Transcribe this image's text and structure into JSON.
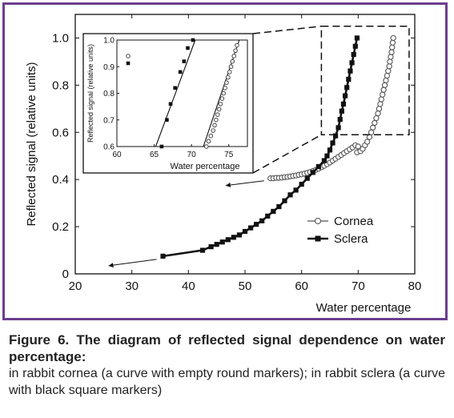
{
  "chart_data": {
    "main": {
      "type": "scatter",
      "xlabel": "Water percentage",
      "ylabel": "Reflected signal (relative units)",
      "xlim": [
        20,
        80
      ],
      "ylim": [
        0,
        1.1
      ],
      "xticks": [
        20,
        30,
        40,
        50,
        60,
        70,
        80
      ],
      "yticks": [
        0,
        0.2,
        0.4,
        0.6,
        0.8,
        1.0
      ],
      "ytick_labels": [
        "0",
        "0.2",
        "0.4",
        "0.6",
        "0.8",
        "1.0"
      ],
      "legend": {
        "placement": "center-right",
        "entries": [
          "Cornea",
          "Sclera"
        ]
      },
      "series": [
        {
          "name": "Cornea",
          "marker": "open-circle",
          "points": [
            [
              54.5,
              0.405
            ],
            [
              55.0,
              0.405
            ],
            [
              55.5,
              0.407
            ],
            [
              56.0,
              0.407
            ],
            [
              56.5,
              0.408
            ],
            [
              57.0,
              0.41
            ],
            [
              57.5,
              0.411
            ],
            [
              58.0,
              0.413
            ],
            [
              58.5,
              0.415
            ],
            [
              59.0,
              0.417
            ],
            [
              59.5,
              0.42
            ],
            [
              60.0,
              0.422
            ],
            [
              60.5,
              0.425
            ],
            [
              61.0,
              0.428
            ],
            [
              61.5,
              0.432
            ],
            [
              62.0,
              0.436
            ],
            [
              62.5,
              0.441
            ],
            [
              63.0,
              0.446
            ],
            [
              63.5,
              0.452
            ],
            [
              64.0,
              0.458
            ],
            [
              64.5,
              0.465
            ],
            [
              65.0,
              0.472
            ],
            [
              65.5,
              0.48
            ],
            [
              66.0,
              0.488
            ],
            [
              66.5,
              0.496
            ],
            [
              67.0,
              0.504
            ],
            [
              67.5,
              0.512
            ],
            [
              68.0,
              0.52
            ],
            [
              68.5,
              0.528
            ],
            [
              69.0,
              0.536
            ],
            [
              69.5,
              0.545
            ],
            [
              70.0,
              0.54
            ],
            [
              69.8,
              0.515
            ],
            [
              70.4,
              0.52
            ],
            [
              70.8,
              0.53
            ],
            [
              71.2,
              0.545
            ],
            [
              71.6,
              0.56
            ],
            [
              72.0,
              0.58
            ],
            [
              72.3,
              0.6
            ],
            [
              72.6,
              0.62
            ],
            [
              72.9,
              0.64
            ],
            [
              73.2,
              0.66
            ],
            [
              73.5,
              0.68
            ],
            [
              73.7,
              0.7
            ],
            [
              73.9,
              0.72
            ],
            [
              74.1,
              0.74
            ],
            [
              74.3,
              0.76
            ],
            [
              74.5,
              0.78
            ],
            [
              74.7,
              0.8
            ],
            [
              74.9,
              0.82
            ],
            [
              75.1,
              0.84
            ],
            [
              75.3,
              0.86
            ],
            [
              75.5,
              0.88
            ],
            [
              75.6,
              0.9
            ],
            [
              75.75,
              0.92
            ],
            [
              75.9,
              0.94
            ],
            [
              76.0,
              0.96
            ],
            [
              76.1,
              0.98
            ],
            [
              76.2,
              1.0
            ]
          ]
        },
        {
          "name": "Sclera",
          "marker": "filled-square",
          "points": [
            [
              35.5,
              0.075
            ],
            [
              42.5,
              0.1
            ],
            [
              44.0,
              0.115
            ],
            [
              45.0,
              0.125
            ],
            [
              46.0,
              0.135
            ],
            [
              47.0,
              0.145
            ],
            [
              48.0,
              0.155
            ],
            [
              49.0,
              0.165
            ],
            [
              50.0,
              0.18
            ],
            [
              51.0,
              0.195
            ],
            [
              52.0,
              0.21
            ],
            [
              53.0,
              0.225
            ],
            [
              54.0,
              0.245
            ],
            [
              55.0,
              0.265
            ],
            [
              56.0,
              0.285
            ],
            [
              57.0,
              0.31
            ],
            [
              58.0,
              0.335
            ],
            [
              59.0,
              0.355
            ],
            [
              60.0,
              0.38
            ],
            [
              61.0,
              0.405
            ],
            [
              62.0,
              0.43
            ],
            [
              63.0,
              0.455
            ],
            [
              64.0,
              0.48
            ],
            [
              64.5,
              0.5
            ],
            [
              65.0,
              0.525
            ],
            [
              65.5,
              0.555
            ],
            [
              66.0,
              0.585
            ],
            [
              66.5,
              0.62
            ],
            [
              66.8,
              0.655
            ],
            [
              67.1,
              0.69
            ],
            [
              67.4,
              0.72
            ],
            [
              67.7,
              0.755
            ],
            [
              68.0,
              0.79
            ],
            [
              68.3,
              0.825
            ],
            [
              68.6,
              0.86
            ],
            [
              68.9,
              0.895
            ],
            [
              69.2,
              0.93
            ],
            [
              69.5,
              0.965
            ],
            [
              69.8,
              1.0
            ]
          ]
        }
      ]
    },
    "inset": {
      "type": "scatter",
      "xlabel": "Water percentage",
      "ylabel": "Reflected signal (relative units)",
      "xlim": [
        60,
        77.5
      ],
      "ylim": [
        0.6,
        1.0
      ],
      "xticks": [
        60,
        65,
        70,
        75
      ],
      "yticks": [
        0.6,
        0.7,
        0.8,
        0.9,
        1.0
      ],
      "ytick_labels": [
        "0.6",
        "0.7",
        "0.8",
        "0.9",
        "1.0"
      ],
      "legend_markers": [
        "Cornea",
        "Sclera"
      ],
      "series": [
        {
          "name": "Sclera",
          "marker": "filled-square",
          "points": [
            [
              66.0,
              0.6
            ],
            [
              66.7,
              0.7
            ],
            [
              67.2,
              0.76
            ],
            [
              67.8,
              0.82
            ],
            [
              68.5,
              0.88
            ],
            [
              69.0,
              0.92
            ],
            [
              69.5,
              0.97
            ],
            [
              70.2,
              1.0
            ]
          ],
          "fit_line": [
            [
              65.2,
              0.6
            ],
            [
              70.5,
              1.0
            ]
          ]
        },
        {
          "name": "Cornea",
          "marker": "open-circle",
          "points": [
            [
              72.0,
              0.6
            ],
            [
              72.3,
              0.62
            ],
            [
              72.6,
              0.64
            ],
            [
              72.9,
              0.66
            ],
            [
              73.1,
              0.68
            ],
            [
              73.3,
              0.7
            ],
            [
              73.5,
              0.72
            ],
            [
              73.7,
              0.74
            ],
            [
              73.9,
              0.76
            ],
            [
              74.1,
              0.78
            ],
            [
              74.3,
              0.8
            ],
            [
              74.5,
              0.82
            ],
            [
              74.7,
              0.84
            ],
            [
              74.9,
              0.86
            ],
            [
              75.1,
              0.88
            ],
            [
              75.3,
              0.9
            ],
            [
              75.5,
              0.92
            ],
            [
              75.7,
              0.94
            ],
            [
              75.9,
              0.96
            ],
            [
              76.1,
              0.98
            ]
          ],
          "fit_line": [
            [
              71.6,
              0.6
            ],
            [
              76.4,
              1.0
            ]
          ]
        }
      ]
    }
  },
  "caption": {
    "title": "Figure 6. The diagram of reflected signal dependence on water percentage:",
    "body": "in rabbit cornea (a curve with empty round markers); in rabbit sclera (a curve with black square markers)"
  },
  "colors": {
    "frame": "#6b3f8f",
    "ink": "#111111",
    "caption": "#222222"
  }
}
